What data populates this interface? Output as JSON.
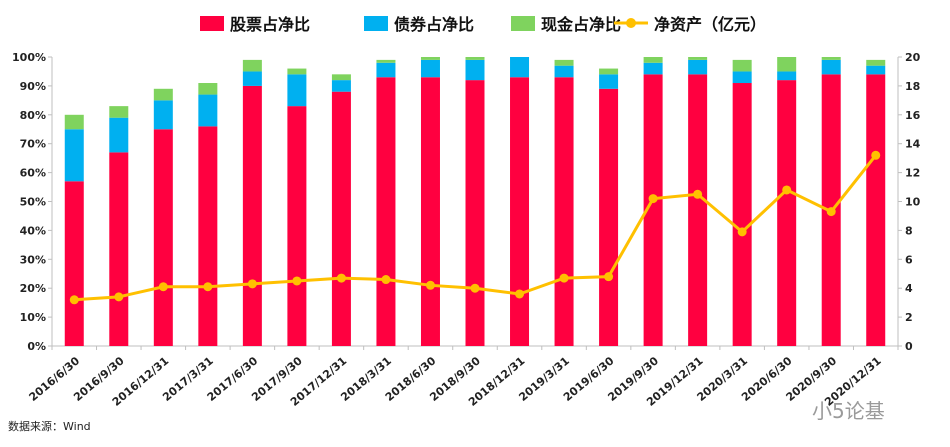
{
  "chart_data": {
    "type": "bar+line",
    "stacked": true,
    "categories": [
      "2016/6/30",
      "2016/9/30",
      "2016/12/31",
      "2017/3/31",
      "2017/6/30",
      "2017/9/30",
      "2017/12/31",
      "2018/3/31",
      "2018/6/30",
      "2018/9/30",
      "2018/12/31",
      "2019/3/31",
      "2019/6/30",
      "2019/9/30",
      "2019/12/31",
      "2020/3/31",
      "2020/6/30",
      "2020/9/30",
      "2020/12/31"
    ],
    "series": [
      {
        "name": "股票占净比",
        "type": "bar",
        "axis": "left",
        "color": "#ff0040",
        "values": [
          57,
          67,
          75,
          76,
          90,
          83,
          88,
          93,
          93,
          92,
          93,
          93,
          89,
          94,
          94,
          91,
          92,
          94,
          94
        ]
      },
      {
        "name": "债券占净比",
        "type": "bar",
        "axis": "left",
        "color": "#00b0f0",
        "values": [
          18,
          12,
          10,
          11,
          5,
          11,
          4,
          5,
          6,
          7,
          7,
          4,
          5,
          4,
          5,
          4,
          3,
          5,
          3
        ]
      },
      {
        "name": "现金占净比",
        "type": "bar",
        "axis": "left",
        "color": "#7fd35e",
        "values": [
          5,
          4,
          4,
          4,
          4,
          2,
          2,
          1,
          1,
          1,
          0,
          2,
          2,
          2,
          1,
          4,
          5,
          1,
          2
        ]
      },
      {
        "name": "净资产（亿元）",
        "type": "line",
        "axis": "right",
        "color": "#ffc000",
        "values": [
          3.2,
          3.4,
          4.1,
          4.1,
          4.3,
          4.5,
          4.7,
          4.6,
          4.2,
          4.0,
          3.6,
          4.7,
          4.8,
          10.2,
          10.5,
          7.9,
          10.8,
          9.3,
          13.2
        ]
      }
    ],
    "y_left": {
      "min": 0,
      "max": 100,
      "step": 10,
      "tick_suffix": "%"
    },
    "y_right": {
      "min": 0,
      "max": 20,
      "step": 2
    },
    "legend": "top",
    "grid": false
  },
  "source": "数据来源：Wind",
  "watermark": "小5论基"
}
